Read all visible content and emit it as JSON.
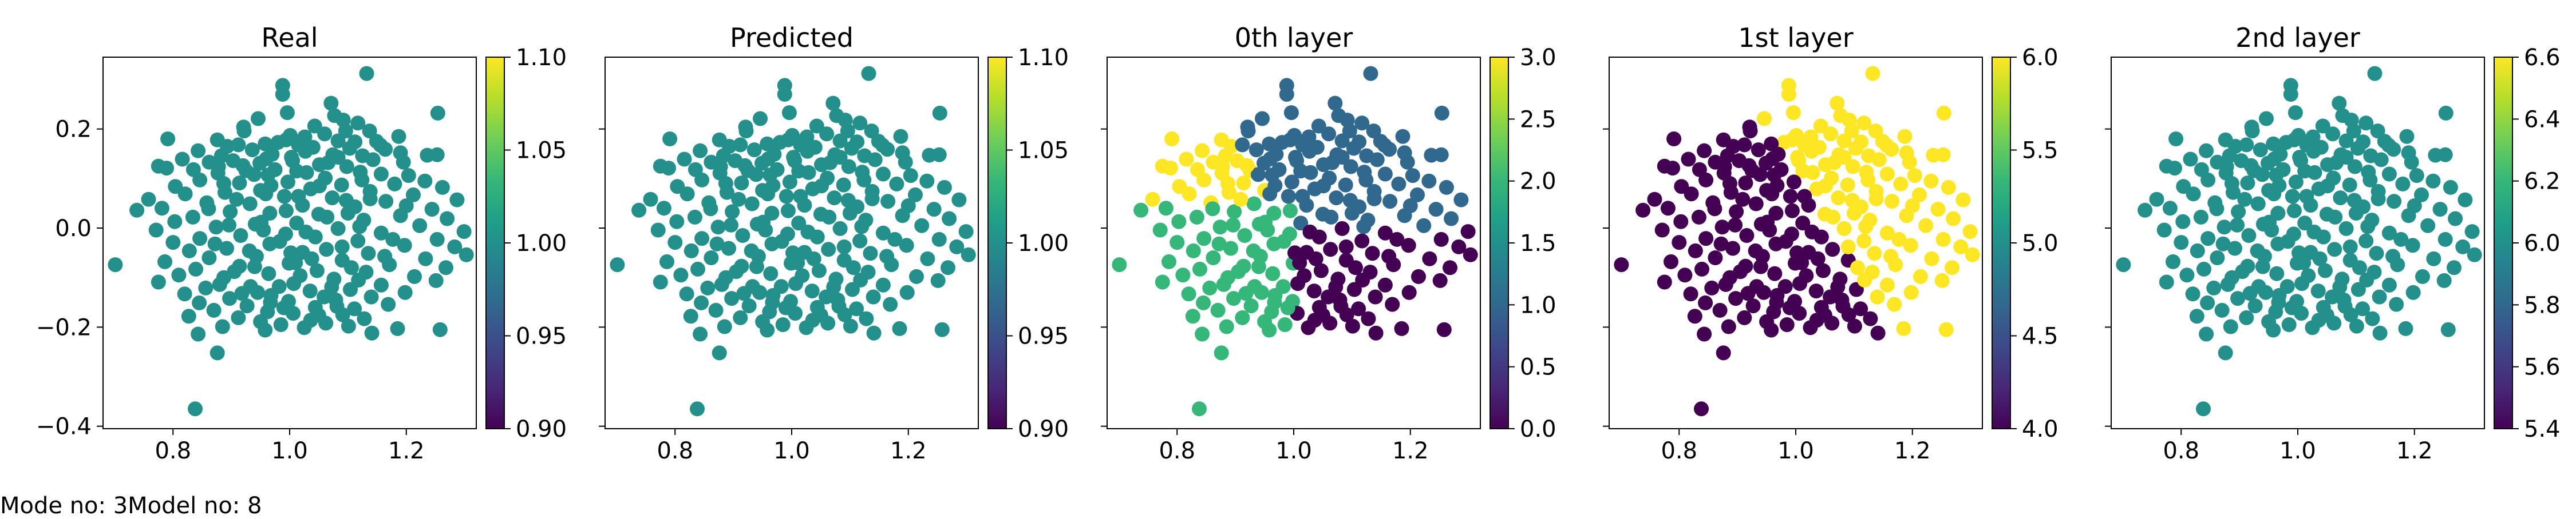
{
  "footer": {
    "text": "Mode no: 3Model no: 8"
  },
  "colormap": {
    "name": "viridis",
    "stops": [
      "#440154",
      "#482878",
      "#3e4989",
      "#31688e",
      "#26828e",
      "#1f9e89",
      "#35b779",
      "#6ece58",
      "#b5de2b",
      "#fde725"
    ]
  },
  "chart_data": [
    {
      "type": "scatter",
      "title": "Real",
      "xlim": [
        0.68,
        1.32
      ],
      "ylim": [
        -0.405,
        0.345
      ],
      "xticks": [
        0.8,
        1.0,
        1.2
      ],
      "xtick_labels": [
        "0.8",
        "1.0",
        "1.2"
      ],
      "yticks": [
        -0.4,
        -0.2,
        0.0,
        0.2
      ],
      "ytick_labels": [
        "−0.4",
        "−0.2",
        "0.0",
        "0.2"
      ],
      "show_ytick_labels": true,
      "colorbar": {
        "range": [
          0.9,
          1.1
        ],
        "ticks": [
          0.9,
          0.95,
          1.0,
          1.05,
          1.1
        ],
        "tick_labels": [
          "0.90",
          "0.95",
          "1.00",
          "1.05",
          "1.10"
        ]
      },
      "color_mode": "constant",
      "value": 1.0
    },
    {
      "type": "scatter",
      "title": "Predicted",
      "xlim": [
        0.68,
        1.32
      ],
      "ylim": [
        -0.405,
        0.345
      ],
      "xticks": [
        0.8,
        1.0,
        1.2
      ],
      "xtick_labels": [
        "0.8",
        "1.0",
        "1.2"
      ],
      "yticks": [
        -0.4,
        -0.2,
        0.0,
        0.2
      ],
      "ytick_labels": [],
      "show_ytick_labels": false,
      "colorbar": {
        "range": [
          0.9,
          1.1
        ],
        "ticks": [
          0.9,
          0.95,
          1.0,
          1.05,
          1.1
        ],
        "tick_labels": [
          "0.90",
          "0.95",
          "1.00",
          "1.05",
          "1.10"
        ]
      },
      "color_mode": "constant",
      "value": 1.0
    },
    {
      "type": "scatter",
      "title": "0th layer",
      "xlim": [
        0.68,
        1.32
      ],
      "ylim": [
        -0.405,
        0.345
      ],
      "xticks": [
        0.8,
        1.0,
        1.2
      ],
      "xtick_labels": [
        "0.8",
        "1.0",
        "1.2"
      ],
      "yticks": [
        -0.4,
        -0.2,
        0.0,
        0.2
      ],
      "ytick_labels": [],
      "show_ytick_labels": false,
      "colorbar": {
        "range": [
          0.0,
          3.0
        ],
        "ticks": [
          0,
          0.5,
          1.0,
          1.5,
          2.0,
          2.5,
          3.0
        ],
        "tick_labels": [
          "0.0",
          "0.5",
          "1.0",
          "1.5",
          "2.0",
          "2.5",
          "3.0"
        ]
      },
      "color_mode": "quadrant",
      "center": [
        1.0,
        0.0
      ]
    },
    {
      "type": "scatter",
      "title": "1st layer",
      "xlim": [
        0.68,
        1.32
      ],
      "ylim": [
        -0.405,
        0.345
      ],
      "xticks": [
        0.8,
        1.0,
        1.2
      ],
      "xtick_labels": [
        "0.8",
        "1.0",
        "1.2"
      ],
      "yticks": [
        -0.4,
        -0.2,
        0.0,
        0.2
      ],
      "ytick_labels": [],
      "show_ytick_labels": false,
      "colorbar": {
        "range": [
          4.0,
          6.0
        ],
        "ticks": [
          4.0,
          4.5,
          5.0,
          5.5,
          6.0
        ],
        "tick_labels": [
          "4.0",
          "4.5",
          "5.0",
          "5.5",
          "6.0"
        ]
      },
      "color_mode": "split",
      "low": 4,
      "high": 6
    },
    {
      "type": "scatter",
      "title": "2nd layer",
      "xlim": [
        0.68,
        1.32
      ],
      "ylim": [
        -0.405,
        0.345
      ],
      "xticks": [
        0.8,
        1.0,
        1.2
      ],
      "xtick_labels": [
        "0.8",
        "1.0",
        "1.2"
      ],
      "yticks": [
        -0.4,
        -0.2,
        0.0,
        0.2
      ],
      "ytick_labels": [],
      "show_ytick_labels": false,
      "colorbar": {
        "range": [
          5.4,
          6.6
        ],
        "ticks": [
          5.4,
          5.6,
          5.8,
          6.0,
          6.2,
          6.4,
          6.6
        ],
        "tick_labels": [
          "5.4",
          "5.6",
          "5.8",
          "6.0",
          "6.2",
          "6.4",
          "6.6"
        ]
      },
      "color_mode": "constant",
      "value": 6.0
    }
  ],
  "points": [
    [
      1.132,
      0.312
    ],
    [
      0.988,
      0.288
    ],
    [
      0.988,
      0.27
    ],
    [
      1.254,
      0.232
    ],
    [
      1.077,
      0.227
    ],
    [
      1.092,
      0.218
    ],
    [
      1.117,
      0.212
    ],
    [
      0.921,
      0.204
    ],
    [
      0.922,
      0.196
    ],
    [
      1.096,
      0.196
    ],
    [
      1.137,
      0.196
    ],
    [
      1.06,
      0.19
    ],
    [
      1.001,
      0.187
    ],
    [
      1.187,
      0.185
    ],
    [
      0.791,
      0.18
    ],
    [
      0.876,
      0.178
    ],
    [
      0.994,
      0.178
    ],
    [
      1.083,
      0.176
    ],
    [
      0.98,
      0.173
    ],
    [
      0.958,
      0.17
    ],
    [
      1.156,
      0.167
    ],
    [
      1.015,
      0.168
    ],
    [
      0.893,
      0.165
    ],
    [
      1.04,
      0.163
    ],
    [
      1.103,
      0.161
    ],
    [
      1.164,
      0.159
    ],
    [
      0.843,
      0.156
    ],
    [
      0.936,
      0.158
    ],
    [
      1.027,
      0.155
    ],
    [
      1.19,
      0.152
    ],
    [
      1.253,
      0.148
    ],
    [
      1.236,
      0.147
    ],
    [
      0.883,
      0.146
    ],
    [
      0.97,
      0.149
    ],
    [
      1.074,
      0.148
    ],
    [
      1.125,
      0.146
    ],
    [
      0.816,
      0.139
    ],
    [
      1.143,
      0.138
    ],
    [
      0.903,
      0.136
    ],
    [
      1.005,
      0.136
    ],
    [
      1.195,
      0.133
    ],
    [
      0.862,
      0.133
    ],
    [
      0.949,
      0.131
    ],
    [
      1.051,
      0.128
    ],
    [
      0.775,
      0.125
    ],
    [
      0.789,
      0.121
    ],
    [
      1.098,
      0.124
    ],
    [
      0.835,
      0.118
    ],
    [
      1.012,
      0.115
    ],
    [
      0.925,
      0.116
    ],
    [
      0.877,
      0.111
    ],
    [
      1.157,
      0.109
    ],
    [
      1.121,
      0.113
    ],
    [
      1.204,
      0.106
    ],
    [
      0.963,
      0.107
    ],
    [
      1.061,
      0.101
    ],
    [
      0.846,
      0.097
    ],
    [
      1.232,
      0.095
    ],
    [
      0.997,
      0.093
    ],
    [
      0.914,
      0.091
    ],
    [
      1.18,
      0.089
    ],
    [
      1.089,
      0.087
    ],
    [
      0.804,
      0.084
    ],
    [
      1.262,
      0.082
    ],
    [
      1.036,
      0.079
    ],
    [
      0.95,
      0.076
    ],
    [
      1.138,
      0.074
    ],
    [
      0.889,
      0.072
    ],
    [
      0.821,
      0.069
    ],
    [
      1.212,
      0.067
    ],
    [
      0.991,
      0.064
    ],
    [
      1.073,
      0.061
    ],
    [
      0.758,
      0.058
    ],
    [
      1.287,
      0.057
    ],
    [
      1.165,
      0.054
    ],
    [
      0.858,
      0.051
    ],
    [
      0.932,
      0.049
    ],
    [
      1.022,
      0.046
    ],
    [
      1.112,
      0.043
    ],
    [
      0.781,
      0.04
    ],
    [
      0.738,
      0.036
    ],
    [
      1.244,
      0.038
    ],
    [
      0.898,
      0.033
    ],
    [
      0.966,
      0.03
    ],
    [
      1.05,
      0.028
    ],
    [
      1.19,
      0.025
    ],
    [
      0.834,
      0.022
    ],
    [
      1.27,
      0.019
    ],
    [
      1.127,
      0.016
    ],
    [
      0.803,
      0.013
    ],
    [
      1.012,
      0.01
    ],
    [
      0.941,
      0.008
    ],
    [
      1.223,
      0.005
    ],
    [
      0.874,
      0.002
    ],
    [
      1.083,
      -0.001
    ],
    [
      0.771,
      -0.004
    ],
    [
      1.299,
      -0.007
    ],
    [
      1.157,
      -0.01
    ],
    [
      0.993,
      -0.012
    ],
    [
      0.916,
      -0.015
    ],
    [
      1.044,
      -0.018
    ],
    [
      0.846,
      -0.021
    ],
    [
      1.253,
      -0.023
    ],
    [
      1.117,
      -0.026
    ],
    [
      0.8,
      -0.029
    ],
    [
      0.966,
      -0.032
    ],
    [
      1.197,
      -0.035
    ],
    [
      1.283,
      -0.038
    ],
    [
      0.892,
      -0.041
    ],
    [
      1.063,
      -0.043
    ],
    [
      0.828,
      -0.046
    ],
    [
      1.022,
      -0.049
    ],
    [
      1.135,
      -0.051
    ],
    [
      1.303,
      -0.054
    ],
    [
      0.943,
      -0.057
    ],
    [
      0.701,
      -0.074
    ],
    [
      0.862,
      -0.06
    ],
    [
      1.233,
      -0.062
    ],
    [
      1.09,
      -0.065
    ],
    [
      0.786,
      -0.068
    ],
    [
      0.999,
      -0.071
    ],
    [
      1.171,
      -0.074
    ],
    [
      0.914,
      -0.077
    ],
    [
      1.268,
      -0.08
    ],
    [
      0.839,
      -0.083
    ],
    [
      1.047,
      -0.086
    ],
    [
      1.131,
      -0.089
    ],
    [
      0.964,
      -0.092
    ],
    [
      0.81,
      -0.095
    ],
    [
      1.214,
      -0.098
    ],
    [
      0.887,
      -0.1
    ],
    [
      1.076,
      -0.103
    ],
    [
      1.251,
      -0.106
    ],
    [
      0.775,
      -0.109
    ],
    [
      1.007,
      -0.112
    ],
    [
      1.157,
      -0.115
    ],
    [
      0.933,
      -0.118
    ],
    [
      0.856,
      -0.121
    ],
    [
      1.104,
      -0.124
    ],
    [
      1.035,
      -0.127
    ],
    [
      1.198,
      -0.13
    ],
    [
      0.82,
      -0.133
    ],
    [
      0.968,
      -0.136
    ],
    [
      1.14,
      -0.139
    ],
    [
      0.897,
      -0.142
    ],
    [
      1.079,
      -0.145
    ],
    [
      0.998,
      -0.148
    ],
    [
      0.845,
      -0.151
    ],
    [
      1.169,
      -0.154
    ],
    [
      0.927,
      -0.157
    ],
    [
      1.044,
      -0.16
    ],
    [
      1.111,
      -0.163
    ],
    [
      0.87,
      -0.166
    ],
    [
      0.962,
      -0.169
    ],
    [
      1.006,
      -0.172
    ],
    [
      1.091,
      -0.175
    ],
    [
      0.827,
      -0.178
    ],
    [
      0.912,
      -0.181
    ],
    [
      1.128,
      -0.183
    ],
    [
      1.036,
      -0.186
    ],
    [
      0.95,
      -0.189
    ],
    [
      1.062,
      -0.192
    ],
    [
      0.985,
      -0.195
    ],
    [
      1.101,
      -0.198
    ],
    [
      0.885,
      -0.199
    ],
    [
      1.025,
      -0.201
    ],
    [
      1.258,
      -0.205
    ],
    [
      1.185,
      -0.203
    ],
    [
      0.958,
      -0.206
    ],
    [
      1.141,
      -0.212
    ],
    [
      0.843,
      -0.214
    ],
    [
      0.876,
      -0.252
    ],
    [
      0.838,
      -0.365
    ],
    [
      0.996,
      0.233
    ],
    [
      1.071,
      0.252
    ],
    [
      0.946,
      0.221
    ],
    [
      1.112,
      0.174
    ],
    [
      1.043,
      0.206
    ],
    [
      0.912,
      0.168
    ],
    [
      1.026,
      0.184
    ],
    [
      1.149,
      0.175
    ],
    [
      0.96,
      0.14
    ],
    [
      1.003,
      0.143
    ],
    [
      1.083,
      0.143
    ],
    [
      0.878,
      0.124
    ],
    [
      0.939,
      0.108
    ],
    [
      1.029,
      0.112
    ],
    [
      1.124,
      0.097
    ],
    [
      0.968,
      0.086
    ],
    [
      1.015,
      0.064
    ],
    [
      0.909,
      0.058
    ],
    [
      1.097,
      0.056
    ],
    [
      0.994,
      0.035
    ],
    [
      1.064,
      0.022
    ],
    [
      0.951,
      0.012
    ],
    [
      0.896,
      0.006
    ],
    [
      1.12,
      0.003
    ],
    [
      1.028,
      -0.008
    ],
    [
      0.983,
      -0.027
    ],
    [
      1.09,
      -0.038
    ],
    [
      0.931,
      -0.046
    ],
    [
      1.038,
      -0.062
    ],
    [
      0.905,
      -0.088
    ],
    [
      1.018,
      -0.096
    ],
    [
      1.118,
      -0.105
    ],
    [
      0.982,
      -0.118
    ],
    [
      0.945,
      -0.13
    ],
    [
      1.059,
      -0.139
    ],
    [
      0.99,
      -0.161
    ],
    [
      1.081,
      -0.158
    ],
    [
      0.94,
      -0.078
    ],
    [
      1.163,
      -0.057
    ],
    [
      1.002,
      -0.05
    ],
    [
      0.872,
      -0.032
    ],
    [
      1.177,
      -0.023
    ],
    [
      0.959,
      0.069
    ],
    [
      1.051,
      0.085
    ],
    [
      0.887,
      0.09
    ],
    [
      1.138,
      0.059
    ],
    [
      0.92,
      0.126
    ],
    [
      1.066,
      0.132
    ],
    [
      0.975,
      0.118
    ],
    [
      1.1,
      0.03
    ],
    [
      0.861,
      0.039
    ],
    [
      1.2,
      0.045
    ],
    [
      0.955,
      -0.004
    ],
    [
      1.01,
      -0.07
    ],
    [
      1.106,
      -0.08
    ],
    [
      0.88,
      -0.114
    ],
    [
      1.072,
      -0.119
    ],
    [
      0.967,
      -0.15
    ],
    [
      0.918,
      -0.132
    ],
    [
      1.05,
      -0.176
    ]
  ]
}
